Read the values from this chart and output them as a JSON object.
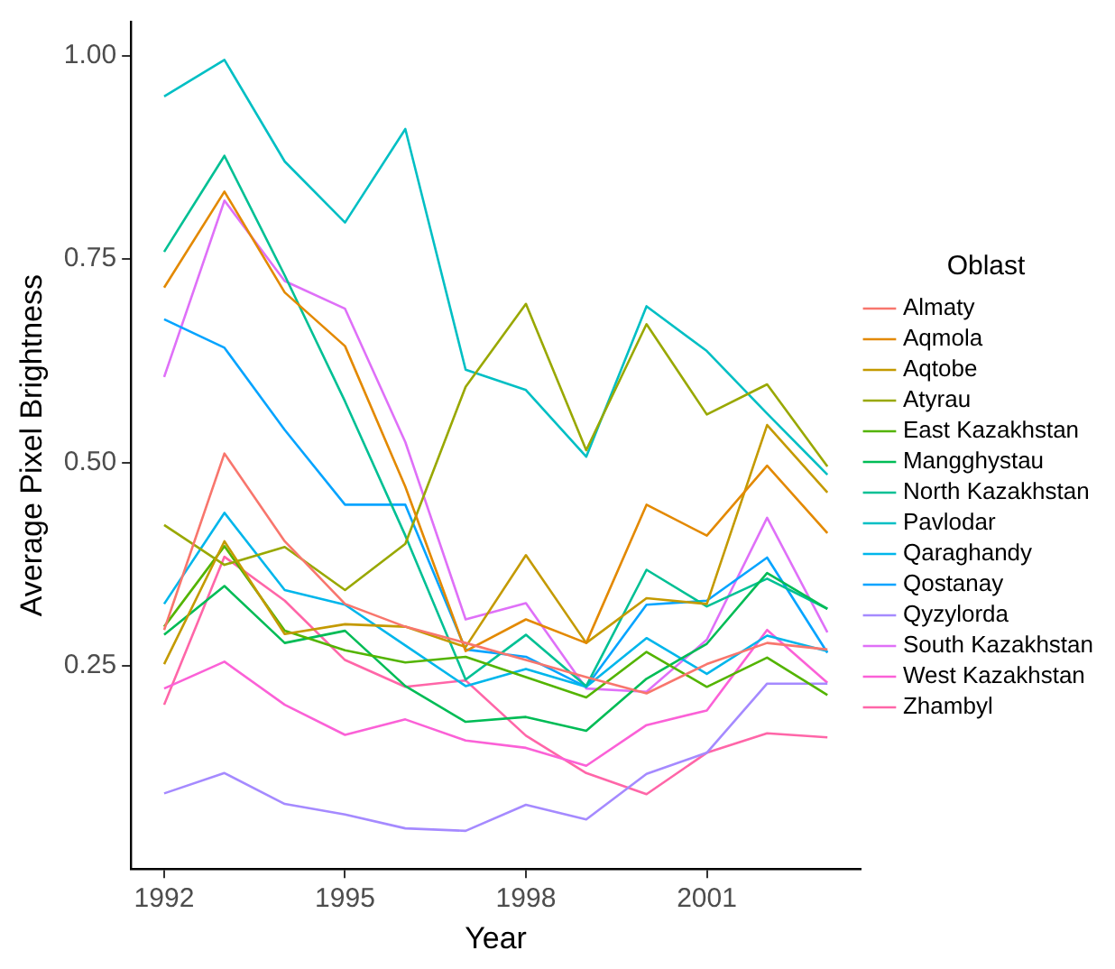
{
  "chart_data": {
    "type": "line",
    "xlabel": "Year",
    "ylabel": "Average Pixel Brightness",
    "legend_title": "Oblast",
    "legend": "right",
    "grid": false,
    "marker": "none",
    "line_style": "solid",
    "x": [
      1992,
      1993,
      1994,
      1995,
      1996,
      1997,
      1998,
      1999,
      2000,
      2001,
      2002,
      2003
    ],
    "xlim": [
      1991.45,
      2003.55
    ],
    "xticks": [
      1992,
      1995,
      1998,
      2001
    ],
    "ylim": [
      0.0,
      1.042
    ],
    "yticks": [
      0.25,
      {
        "value": 0.5,
        "label": "0.50"
      },
      0.75,
      {
        "value": 1,
        "label": "1.00"
      }
    ],
    "series": [
      {
        "name": "Almaty",
        "color": "#f8766d",
        "values": [
          0.294,
          0.511,
          0.403,
          0.326,
          0.298,
          0.278,
          0.257,
          0.236,
          0.216,
          0.252,
          0.278,
          0.27
        ]
      },
      {
        "name": "Aqmola",
        "color": "#e38900",
        "values": [
          0.715,
          0.833,
          0.709,
          0.643,
          0.47,
          0.268,
          0.307,
          0.278,
          0.448,
          0.41,
          0.496,
          0.413
        ]
      },
      {
        "name": "Aqtobe",
        "color": "#c49a00",
        "values": [
          0.252,
          0.403,
          0.289,
          0.301,
          0.298,
          0.273,
          0.386,
          0.278,
          0.333,
          0.326,
          0.546,
          0.463
        ]
      },
      {
        "name": "Atyrau",
        "color": "#99a800",
        "values": [
          0.423,
          0.374,
          0.396,
          0.343,
          0.4,
          0.593,
          0.695,
          0.515,
          0.67,
          0.559,
          0.596,
          0.495
        ]
      },
      {
        "name": "East Kazakhstan",
        "color": "#53b400",
        "values": [
          0.298,
          0.397,
          0.293,
          0.269,
          0.254,
          0.261,
          0.236,
          0.211,
          0.267,
          0.224,
          0.26,
          0.214
        ]
      },
      {
        "name": "Mangghystau",
        "color": "#00bc56",
        "values": [
          0.288,
          0.348,
          0.278,
          0.293,
          0.225,
          0.181,
          0.187,
          0.17,
          0.234,
          0.277,
          0.364,
          0.32
        ]
      },
      {
        "name": "North Kazakhstan",
        "color": "#00c094",
        "values": [
          0.759,
          0.877,
          0.73,
          0.575,
          0.41,
          0.233,
          0.288,
          0.225,
          0.368,
          0.323,
          0.357,
          0.32
        ]
      },
      {
        "name": "Pavlodar",
        "color": "#00bfc4",
        "values": [
          0.95,
          0.995,
          0.87,
          0.795,
          0.91,
          0.614,
          0.589,
          0.507,
          0.692,
          0.637,
          0.56,
          0.485
        ]
      },
      {
        "name": "Qaraghandy",
        "color": "#00b6eb",
        "values": [
          0.326,
          0.438,
          0.343,
          0.325,
          0.275,
          0.225,
          0.246,
          0.224,
          0.284,
          0.24,
          0.287,
          0.268
        ]
      },
      {
        "name": "Qostanay",
        "color": "#06a4ff",
        "values": [
          0.676,
          0.641,
          0.54,
          0.448,
          0.448,
          0.27,
          0.261,
          0.224,
          0.325,
          0.33,
          0.383,
          0.266
        ]
      },
      {
        "name": "Qyzylorda",
        "color": "#a58aff",
        "values": [
          0.093,
          0.118,
          0.08,
          0.067,
          0.05,
          0.047,
          0.079,
          0.061,
          0.117,
          0.143,
          0.228,
          0.228
        ]
      },
      {
        "name": "South Kazakhstan",
        "color": "#df70f8",
        "values": [
          0.605,
          0.822,
          0.723,
          0.689,
          0.525,
          0.307,
          0.327,
          0.222,
          0.218,
          0.282,
          0.432,
          0.291
        ]
      },
      {
        "name": "West Kazakhstan",
        "color": "#fb61d7",
        "values": [
          0.222,
          0.255,
          0.202,
          0.165,
          0.184,
          0.158,
          0.149,
          0.127,
          0.177,
          0.195,
          0.294,
          0.229
        ]
      },
      {
        "name": "Zhambyl",
        "color": "#ff66a8",
        "values": [
          0.202,
          0.384,
          0.33,
          0.257,
          0.224,
          0.232,
          0.164,
          0.118,
          0.092,
          0.143,
          0.167,
          0.162
        ]
      }
    ]
  }
}
